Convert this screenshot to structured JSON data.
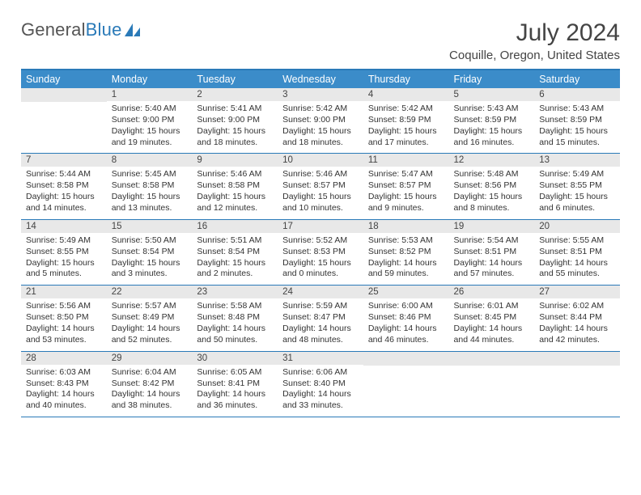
{
  "logo": {
    "text1": "General",
    "text2": "Blue"
  },
  "title": "July 2024",
  "location": "Coquille, Oregon, United States",
  "colors": {
    "header_bg": "#3b8cc9",
    "border": "#2a7ab8",
    "daynum_bg": "#e8e8e8",
    "text": "#333333",
    "title_text": "#444444"
  },
  "daysOfWeek": [
    "Sunday",
    "Monday",
    "Tuesday",
    "Wednesday",
    "Thursday",
    "Friday",
    "Saturday"
  ],
  "weeks": [
    [
      {
        "n": "",
        "lines": []
      },
      {
        "n": "1",
        "lines": [
          "Sunrise: 5:40 AM",
          "Sunset: 9:00 PM",
          "Daylight: 15 hours",
          "and 19 minutes."
        ]
      },
      {
        "n": "2",
        "lines": [
          "Sunrise: 5:41 AM",
          "Sunset: 9:00 PM",
          "Daylight: 15 hours",
          "and 18 minutes."
        ]
      },
      {
        "n": "3",
        "lines": [
          "Sunrise: 5:42 AM",
          "Sunset: 9:00 PM",
          "Daylight: 15 hours",
          "and 18 minutes."
        ]
      },
      {
        "n": "4",
        "lines": [
          "Sunrise: 5:42 AM",
          "Sunset: 8:59 PM",
          "Daylight: 15 hours",
          "and 17 minutes."
        ]
      },
      {
        "n": "5",
        "lines": [
          "Sunrise: 5:43 AM",
          "Sunset: 8:59 PM",
          "Daylight: 15 hours",
          "and 16 minutes."
        ]
      },
      {
        "n": "6",
        "lines": [
          "Sunrise: 5:43 AM",
          "Sunset: 8:59 PM",
          "Daylight: 15 hours",
          "and 15 minutes."
        ]
      }
    ],
    [
      {
        "n": "7",
        "lines": [
          "Sunrise: 5:44 AM",
          "Sunset: 8:58 PM",
          "Daylight: 15 hours",
          "and 14 minutes."
        ]
      },
      {
        "n": "8",
        "lines": [
          "Sunrise: 5:45 AM",
          "Sunset: 8:58 PM",
          "Daylight: 15 hours",
          "and 13 minutes."
        ]
      },
      {
        "n": "9",
        "lines": [
          "Sunrise: 5:46 AM",
          "Sunset: 8:58 PM",
          "Daylight: 15 hours",
          "and 12 minutes."
        ]
      },
      {
        "n": "10",
        "lines": [
          "Sunrise: 5:46 AM",
          "Sunset: 8:57 PM",
          "Daylight: 15 hours",
          "and 10 minutes."
        ]
      },
      {
        "n": "11",
        "lines": [
          "Sunrise: 5:47 AM",
          "Sunset: 8:57 PM",
          "Daylight: 15 hours",
          "and 9 minutes."
        ]
      },
      {
        "n": "12",
        "lines": [
          "Sunrise: 5:48 AM",
          "Sunset: 8:56 PM",
          "Daylight: 15 hours",
          "and 8 minutes."
        ]
      },
      {
        "n": "13",
        "lines": [
          "Sunrise: 5:49 AM",
          "Sunset: 8:55 PM",
          "Daylight: 15 hours",
          "and 6 minutes."
        ]
      }
    ],
    [
      {
        "n": "14",
        "lines": [
          "Sunrise: 5:49 AM",
          "Sunset: 8:55 PM",
          "Daylight: 15 hours",
          "and 5 minutes."
        ]
      },
      {
        "n": "15",
        "lines": [
          "Sunrise: 5:50 AM",
          "Sunset: 8:54 PM",
          "Daylight: 15 hours",
          "and 3 minutes."
        ]
      },
      {
        "n": "16",
        "lines": [
          "Sunrise: 5:51 AM",
          "Sunset: 8:54 PM",
          "Daylight: 15 hours",
          "and 2 minutes."
        ]
      },
      {
        "n": "17",
        "lines": [
          "Sunrise: 5:52 AM",
          "Sunset: 8:53 PM",
          "Daylight: 15 hours",
          "and 0 minutes."
        ]
      },
      {
        "n": "18",
        "lines": [
          "Sunrise: 5:53 AM",
          "Sunset: 8:52 PM",
          "Daylight: 14 hours",
          "and 59 minutes."
        ]
      },
      {
        "n": "19",
        "lines": [
          "Sunrise: 5:54 AM",
          "Sunset: 8:51 PM",
          "Daylight: 14 hours",
          "and 57 minutes."
        ]
      },
      {
        "n": "20",
        "lines": [
          "Sunrise: 5:55 AM",
          "Sunset: 8:51 PM",
          "Daylight: 14 hours",
          "and 55 minutes."
        ]
      }
    ],
    [
      {
        "n": "21",
        "lines": [
          "Sunrise: 5:56 AM",
          "Sunset: 8:50 PM",
          "Daylight: 14 hours",
          "and 53 minutes."
        ]
      },
      {
        "n": "22",
        "lines": [
          "Sunrise: 5:57 AM",
          "Sunset: 8:49 PM",
          "Daylight: 14 hours",
          "and 52 minutes."
        ]
      },
      {
        "n": "23",
        "lines": [
          "Sunrise: 5:58 AM",
          "Sunset: 8:48 PM",
          "Daylight: 14 hours",
          "and 50 minutes."
        ]
      },
      {
        "n": "24",
        "lines": [
          "Sunrise: 5:59 AM",
          "Sunset: 8:47 PM",
          "Daylight: 14 hours",
          "and 48 minutes."
        ]
      },
      {
        "n": "25",
        "lines": [
          "Sunrise: 6:00 AM",
          "Sunset: 8:46 PM",
          "Daylight: 14 hours",
          "and 46 minutes."
        ]
      },
      {
        "n": "26",
        "lines": [
          "Sunrise: 6:01 AM",
          "Sunset: 8:45 PM",
          "Daylight: 14 hours",
          "and 44 minutes."
        ]
      },
      {
        "n": "27",
        "lines": [
          "Sunrise: 6:02 AM",
          "Sunset: 8:44 PM",
          "Daylight: 14 hours",
          "and 42 minutes."
        ]
      }
    ],
    [
      {
        "n": "28",
        "lines": [
          "Sunrise: 6:03 AM",
          "Sunset: 8:43 PM",
          "Daylight: 14 hours",
          "and 40 minutes."
        ]
      },
      {
        "n": "29",
        "lines": [
          "Sunrise: 6:04 AM",
          "Sunset: 8:42 PM",
          "Daylight: 14 hours",
          "and 38 minutes."
        ]
      },
      {
        "n": "30",
        "lines": [
          "Sunrise: 6:05 AM",
          "Sunset: 8:41 PM",
          "Daylight: 14 hours",
          "and 36 minutes."
        ]
      },
      {
        "n": "31",
        "lines": [
          "Sunrise: 6:06 AM",
          "Sunset: 8:40 PM",
          "Daylight: 14 hours",
          "and 33 minutes."
        ]
      },
      {
        "n": "",
        "lines": []
      },
      {
        "n": "",
        "lines": []
      },
      {
        "n": "",
        "lines": []
      }
    ]
  ]
}
